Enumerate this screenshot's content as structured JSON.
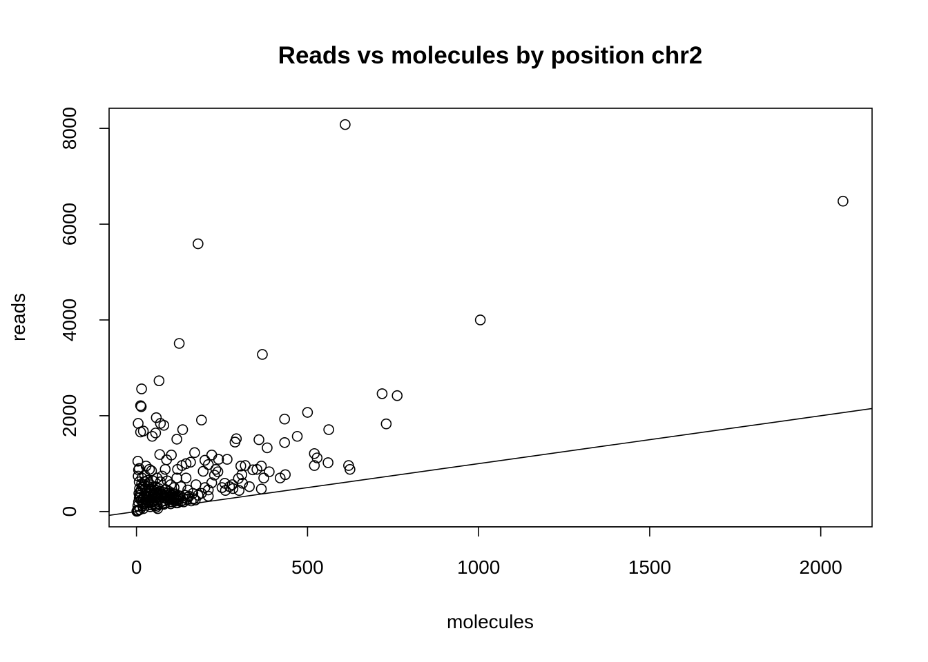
{
  "chart_data": {
    "type": "scatter",
    "title": "Reads vs molecules by position chr2",
    "xlabel": "molecules",
    "ylabel": "reads",
    "xlim": [
      -80,
      2150
    ],
    "ylim": [
      -320,
      8420
    ],
    "x_ticks": [
      0,
      500,
      1000,
      1500,
      2000
    ],
    "x_tick_labels": [
      "0",
      "500",
      "1000",
      "1500",
      "2000"
    ],
    "y_ticks": [
      0,
      2000,
      4000,
      6000,
      8000
    ],
    "y_tick_labels": [
      "0",
      "2000",
      "4000",
      "6000",
      "8000"
    ],
    "grid": false,
    "reference_line": {
      "intercept": 0,
      "slope": 1
    },
    "points": [
      [
        610,
        8080
      ],
      [
        2065,
        6480
      ],
      [
        180,
        5590
      ],
      [
        1005,
        4000
      ],
      [
        125,
        3510
      ],
      [
        368,
        3280
      ],
      [
        66,
        2730
      ],
      [
        15,
        2560
      ],
      [
        718,
        2460
      ],
      [
        762,
        2420
      ],
      [
        12,
        2210
      ],
      [
        14,
        2190
      ],
      [
        500,
        2070
      ],
      [
        433,
        1930
      ],
      [
        190,
        1910
      ],
      [
        58,
        1960
      ],
      [
        70,
        1840
      ],
      [
        80,
        1800
      ],
      [
        5,
        1840
      ],
      [
        730,
        1830
      ],
      [
        562,
        1710
      ],
      [
        135,
        1710
      ],
      [
        20,
        1680
      ],
      [
        12,
        1660
      ],
      [
        56,
        1640
      ],
      [
        46,
        1570
      ],
      [
        470,
        1570
      ],
      [
        118,
        1510
      ],
      [
        292,
        1520
      ],
      [
        288,
        1450
      ],
      [
        358,
        1500
      ],
      [
        433,
        1440
      ],
      [
        382,
        1330
      ],
      [
        170,
        1230
      ],
      [
        68,
        1190
      ],
      [
        102,
        1180
      ],
      [
        520,
        1210
      ],
      [
        528,
        1120
      ],
      [
        220,
        1180
      ],
      [
        240,
        1090
      ],
      [
        265,
        1090
      ],
      [
        200,
        1070
      ],
      [
        88,
        1080
      ],
      [
        4,
        1050
      ],
      [
        560,
        1020
      ],
      [
        158,
        1030
      ],
      [
        145,
        1000
      ],
      [
        133,
        960
      ],
      [
        210,
        980
      ],
      [
        620,
        960
      ],
      [
        520,
        960
      ],
      [
        318,
        960
      ],
      [
        305,
        950
      ],
      [
        365,
        950
      ],
      [
        28,
        950
      ],
      [
        8,
        900
      ],
      [
        38,
        880
      ],
      [
        84,
        880
      ],
      [
        120,
        880
      ],
      [
        232,
        880
      ],
      [
        340,
        870
      ],
      [
        352,
        880
      ],
      [
        624,
        880
      ],
      [
        6,
        870
      ],
      [
        44,
        850
      ],
      [
        195,
        840
      ],
      [
        238,
        830
      ],
      [
        388,
        830
      ],
      [
        308,
        770
      ],
      [
        435,
        770
      ],
      [
        228,
        760
      ],
      [
        420,
        700
      ],
      [
        372,
        700
      ],
      [
        298,
        690
      ],
      [
        5,
        740
      ],
      [
        75,
        740
      ],
      [
        118,
        700
      ],
      [
        145,
        700
      ],
      [
        8,
        620
      ],
      [
        36,
        600
      ],
      [
        220,
        600
      ],
      [
        258,
        590
      ],
      [
        310,
        590
      ],
      [
        280,
        560
      ],
      [
        174,
        560
      ],
      [
        272,
        520
      ],
      [
        330,
        520
      ],
      [
        200,
        500
      ],
      [
        250,
        500
      ],
      [
        282,
        480
      ],
      [
        365,
        470
      ],
      [
        210,
        450
      ],
      [
        260,
        440
      ],
      [
        300,
        440
      ],
      [
        190,
        380
      ],
      [
        165,
        380
      ],
      [
        180,
        340
      ],
      [
        210,
        320
      ],
      [
        150,
        300
      ],
      [
        168,
        270
      ],
      [
        172,
        240
      ],
      [
        160,
        220
      ],
      [
        138,
        200
      ],
      [
        120,
        180
      ],
      [
        100,
        160
      ],
      [
        80,
        150
      ],
      [
        60,
        130
      ],
      [
        40,
        100
      ],
      [
        20,
        60
      ],
      [
        10,
        40
      ],
      [
        5,
        20
      ],
      [
        2,
        10
      ],
      [
        1,
        5
      ],
      [
        3,
        30
      ],
      [
        4,
        120
      ],
      [
        6,
        200
      ],
      [
        8,
        280
      ],
      [
        10,
        340
      ],
      [
        12,
        400
      ],
      [
        14,
        460
      ],
      [
        18,
        520
      ],
      [
        22,
        560
      ],
      [
        26,
        480
      ],
      [
        30,
        420
      ],
      [
        34,
        360
      ],
      [
        38,
        300
      ],
      [
        42,
        240
      ],
      [
        46,
        200
      ],
      [
        50,
        160
      ],
      [
        54,
        120
      ],
      [
        58,
        90
      ],
      [
        62,
        60
      ],
      [
        18,
        120
      ],
      [
        24,
        180
      ],
      [
        28,
        240
      ],
      [
        32,
        300
      ],
      [
        36,
        180
      ],
      [
        44,
        140
      ],
      [
        52,
        220
      ],
      [
        56,
        280
      ],
      [
        64,
        320
      ],
      [
        68,
        260
      ],
      [
        72,
        200
      ],
      [
        76,
        160
      ],
      [
        84,
        220
      ],
      [
        88,
        280
      ],
      [
        92,
        340
      ],
      [
        96,
        260
      ],
      [
        104,
        200
      ],
      [
        108,
        300
      ],
      [
        112,
        240
      ],
      [
        116,
        180
      ],
      [
        124,
        260
      ],
      [
        128,
        320
      ],
      [
        132,
        220
      ],
      [
        136,
        280
      ],
      [
        142,
        340
      ],
      [
        148,
        260
      ],
      [
        154,
        320
      ],
      [
        16,
        700
      ],
      [
        24,
        760
      ],
      [
        32,
        650
      ],
      [
        40,
        560
      ],
      [
        48,
        640
      ],
      [
        60,
        700
      ],
      [
        70,
        620
      ],
      [
        90,
        640
      ],
      [
        100,
        560
      ],
      [
        110,
        500
      ],
      [
        130,
        520
      ],
      [
        150,
        450
      ],
      [
        95,
        420
      ],
      [
        85,
        460
      ],
      [
        65,
        480
      ],
      [
        55,
        520
      ],
      [
        45,
        460
      ],
      [
        35,
        520
      ],
      [
        25,
        620
      ],
      [
        15,
        580
      ],
      [
        9,
        480
      ],
      [
        7,
        380
      ],
      [
        11,
        300
      ],
      [
        13,
        240
      ],
      [
        17,
        200
      ],
      [
        19,
        160
      ],
      [
        21,
        260
      ],
      [
        23,
        320
      ],
      [
        27,
        380
      ],
      [
        29,
        300
      ],
      [
        31,
        240
      ],
      [
        33,
        200
      ],
      [
        37,
        260
      ],
      [
        39,
        380
      ],
      [
        41,
        420
      ],
      [
        43,
        340
      ],
      [
        47,
        300
      ],
      [
        49,
        380
      ],
      [
        51,
        420
      ],
      [
        53,
        340
      ],
      [
        57,
        380
      ],
      [
        59,
        440
      ],
      [
        61,
        400
      ],
      [
        63,
        360
      ],
      [
        67,
        420
      ],
      [
        69,
        380
      ],
      [
        71,
        340
      ],
      [
        73,
        300
      ],
      [
        77,
        360
      ],
      [
        79,
        400
      ],
      [
        81,
        320
      ],
      [
        83,
        280
      ],
      [
        87,
        340
      ],
      [
        89,
        380
      ],
      [
        91,
        300
      ],
      [
        93,
        240
      ],
      [
        97,
        320
      ],
      [
        99,
        380
      ],
      [
        101,
        260
      ],
      [
        103,
        300
      ],
      [
        105,
        340
      ],
      [
        107,
        380
      ],
      [
        109,
        260
      ],
      [
        111,
        320
      ],
      [
        113,
        360
      ],
      [
        115,
        280
      ],
      [
        117,
        240
      ],
      [
        119,
        300
      ],
      [
        121,
        340
      ]
    ]
  }
}
